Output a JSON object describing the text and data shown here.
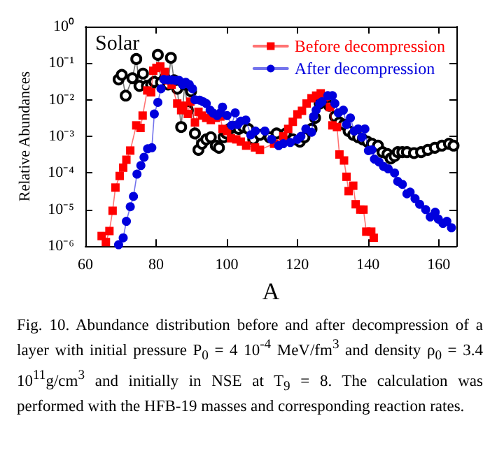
{
  "chart_data": {
    "type": "line",
    "xlabel": "A",
    "ylabel": "Relative Abundances",
    "xlim": [
      60,
      165
    ],
    "xticks": [
      60,
      80,
      100,
      120,
      140,
      160
    ],
    "ylim": [
      1e-06,
      1
    ],
    "log": true,
    "yticks": [
      {
        "value": 1e-06,
        "label": "10⁻⁶"
      },
      {
        "value": 1e-05,
        "label": "10⁻⁵"
      },
      {
        "value": 0.0001,
        "label": "10⁻⁴"
      },
      {
        "value": 0.001,
        "label": "10⁻³"
      },
      {
        "value": 0.01,
        "label": "10⁻²"
      },
      {
        "value": 0.1,
        "label": "10⁻¹"
      },
      {
        "value": 1,
        "label": "10⁰"
      }
    ],
    "grid": false,
    "legend": "top right",
    "line_style": "solid",
    "series": [
      {
        "name": "Solar",
        "color": "#000000",
        "marker": "circle",
        "x": [
          69.4,
          70.3,
          71.4,
          73.3,
          74.4,
          75.3,
          76.3,
          77.4,
          78.6,
          79.5,
          80.5,
          81.4,
          82.5,
          83.4,
          84.2,
          85.1,
          86,
          87.1,
          88.1,
          89,
          89.9,
          91,
          92,
          93,
          94.2,
          95.5,
          96.9,
          97.8,
          99.1,
          99.9,
          100.8,
          102.1,
          103.4,
          104.7,
          106.1,
          107.5,
          109.4,
          112.1,
          114.1,
          116.7,
          118.7,
          120.7,
          122,
          124,
          125,
          126.3,
          127.7,
          129,
          130.6,
          131.9,
          133.2,
          134.5,
          135.8,
          137.2,
          138.5,
          139.8,
          141.1,
          142.8,
          144.1,
          145.5,
          146.4,
          147.5,
          148.4,
          149.7,
          151,
          153,
          155,
          156.9,
          158.9,
          160.9,
          162.9,
          164.2
        ],
        "values": [
          0.036,
          0.048,
          0.013,
          0.039,
          0.13,
          0.024,
          0.052,
          0.024,
          0.026,
          0.031,
          0.17,
          0.03,
          0.039,
          0.026,
          0.14,
          0.034,
          0.02,
          0.0018,
          0.026,
          0.0052,
          0.017,
          0.0012,
          0.00043,
          0.00063,
          0.00083,
          0.00095,
          0.00056,
          0.00049,
          0.00095,
          0.0012,
          0.0016,
          0.0018,
          0.0016,
          0.0018,
          0.0016,
          0.00083,
          0.0011,
          0.00095,
          0.0012,
          0.0012,
          0.00083,
          0.00072,
          0.00095,
          0.0016,
          0.0032,
          0.0079,
          0.0089,
          0.0069,
          0.0035,
          0.0024,
          0.0021,
          0.0014,
          0.0011,
          0.00095,
          0.00083,
          0.00072,
          0.00063,
          0.00056,
          0.00037,
          0.00033,
          0.00025,
          0.00029,
          0.00037,
          0.00037,
          0.00037,
          0.00035,
          0.00037,
          0.00043,
          0.00049,
          0.00056,
          0.00063,
          0.00056
        ]
      },
      {
        "name": "Before decompression",
        "color": "#ff0000",
        "marker": "square",
        "x": [
          64.6,
          65.8,
          66.8,
          67.7,
          68.5,
          69.7,
          70.7,
          71.6,
          72.7,
          74.4,
          75.6,
          76.2,
          77.5,
          78.6,
          79.2,
          80.1,
          81.2,
          82.5,
          83.5,
          84.4,
          86,
          87.1,
          87.7,
          89,
          89.7,
          91,
          92,
          93,
          94.2,
          95.5,
          96.9,
          98.2,
          98.8,
          100.1,
          101.2,
          102.7,
          104,
          105.5,
          108,
          109.4,
          113.4,
          116,
          117.4,
          118.7,
          120,
          121.3,
          122.6,
          124,
          125.3,
          126.6,
          127.9,
          129.2,
          129.9,
          131.2,
          131.9,
          133.2,
          133.9,
          134.5,
          135.8,
          136.5,
          137.8,
          138.7,
          139.5,
          140.9,
          141.6
        ],
        "values": [
          1.9e-06,
          1.3e-06,
          2.6e-06,
          9.3e-06,
          4e-05,
          8.3e-05,
          0.00014,
          0.00023,
          0.00041,
          0.002,
          0.0017,
          0.0037,
          0.018,
          0.016,
          0.062,
          0.074,
          0.081,
          0.058,
          0.034,
          0.026,
          0.0079,
          0.0052,
          0.0069,
          0.0041,
          0.0089,
          0.0024,
          0.0047,
          0.0037,
          0.0032,
          0.0028,
          0.0032,
          0.0035,
          0.0016,
          0.0014,
          0.00089,
          0.00083,
          0.00072,
          0.00056,
          0.0005,
          0.00043,
          0.00063,
          0.001,
          0.0016,
          0.0025,
          0.004,
          0.005,
          0.0079,
          0.011,
          0.013,
          0.015,
          0.012,
          0.0063,
          0.002,
          0.0018,
          0.00032,
          0.00022,
          7.9e-05,
          3.2e-05,
          4.5e-05,
          1.4e-05,
          1e-05,
          1e-05,
          2.5e-06,
          2.5e-06,
          1.7e-06
        ]
      },
      {
        "name": "After decompression",
        "color": "#0000dd",
        "marker": "circle",
        "x": [
          69.4,
          70.7,
          71.6,
          72.7,
          73.6,
          74.6,
          75.7,
          76.6,
          77.6,
          78.8,
          79.5,
          80.5,
          81.4,
          82.2,
          83.4,
          84.4,
          85.5,
          86.5,
          87.5,
          88.4,
          89.4,
          90.3,
          91,
          92.3,
          93.3,
          94.2,
          95.3,
          96.2,
          97.3,
          98.2,
          98.8,
          100.1,
          101.4,
          102.4,
          103.1,
          104,
          105.4,
          106.8,
          108.1,
          110.8,
          112.7,
          114.7,
          116,
          118,
          120,
          121,
          122.4,
          124,
          124.6,
          125.3,
          126.3,
          127,
          128.6,
          129.9,
          130.6,
          131.6,
          133,
          133.9,
          135,
          136.1,
          137.2,
          138.2,
          139.1,
          140.1,
          141.1,
          141.8,
          143.1,
          144.4,
          145.7,
          147.5,
          148.4,
          149.7,
          151,
          151.9,
          153.3,
          154.6,
          156.3,
          157.6,
          159,
          159.9,
          161.2,
          162.3,
          163.6
        ],
        "values": [
          1.1e-06,
          1.7e-06,
          4.8e-06,
          1.2e-05,
          2.3e-05,
          9.3e-05,
          0.00016,
          0.00027,
          0.00046,
          0.00049,
          0.0041,
          0.0085,
          0.02,
          0.036,
          0.035,
          0.035,
          0.034,
          0.034,
          0.026,
          0.03,
          0.026,
          0.02,
          0.01,
          0.0098,
          0.0089,
          0.0079,
          0.0052,
          0.0043,
          0.0037,
          0.0044,
          0.0063,
          0.0037,
          0.002,
          0.0044,
          0.0021,
          0.0026,
          0.0028,
          0.0011,
          0.0014,
          0.0014,
          0.00083,
          0.00056,
          0.00063,
          0.00068,
          0.00083,
          0.001,
          0.0016,
          0.0013,
          0.0035,
          0.0052,
          0.0079,
          0.0089,
          0.013,
          0.013,
          0.0079,
          0.0044,
          0.0052,
          0.0021,
          0.0032,
          0.0014,
          0.0016,
          0.00095,
          0.0016,
          0.00041,
          0.00043,
          0.00024,
          0.0002,
          0.00015,
          0.00013,
          0.0001,
          5.9e-05,
          4.9e-05,
          2.7e-05,
          3e-05,
          2e-05,
          1.4e-05,
          1e-05,
          6.3e-06,
          8.5e-06,
          5.5e-06,
          4.2e-06,
          4.8e-06,
          3.2e-06
        ]
      }
    ],
    "annotations": [
      "Fig. 10. Abundance distribution before and after decompression of a layer with initial pressure P$_{0}$ = 4 10$^{-4}$ MeV/fm$^{3}$ and density ρ$_{0}$ = 3.4 10$^{11}$g/cm$^{3}$ and initially in NSE at T$_{9}$ = 8. The calculation was performed with the HFB-19 masses and corresponding reaction rates."
    ]
  }
}
